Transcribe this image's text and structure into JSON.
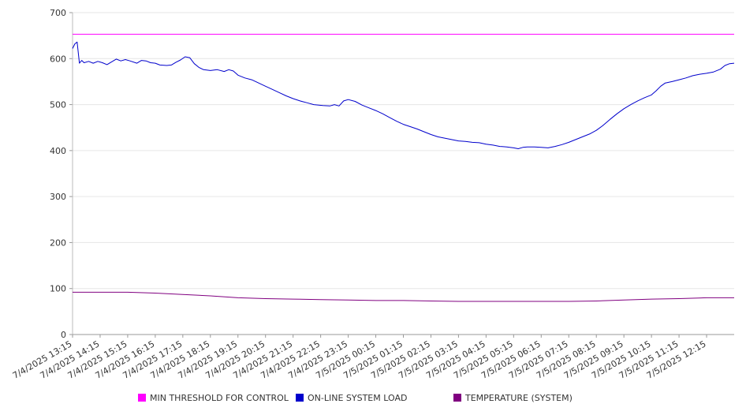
{
  "chart_data": {
    "type": "line",
    "title": "",
    "xlabel": "",
    "ylabel": "",
    "ylim": [
      0,
      700
    ],
    "yticks": [
      0,
      100,
      200,
      300,
      400,
      500,
      600,
      700
    ],
    "x_tick_labels": [
      "7/4/2025 13:15",
      "7/4/2025 14:15",
      "7/4/2025 15:15",
      "7/4/2025 16:15",
      "7/4/2025 17:15",
      "7/4/2025 18:15",
      "7/4/2025 19:15",
      "7/4/2025 20:15",
      "7/4/2025 21:15",
      "7/4/2025 22:15",
      "7/4/2025 23:15",
      "7/5/2025 00:15",
      "7/5/2025 01:15",
      "7/5/2025 02:15",
      "7/5/2025 03:15",
      "7/5/2025 04:15",
      "7/5/2025 05:15",
      "7/5/2025 06:15",
      "7/5/2025 07:15",
      "7/5/2025 08:15",
      "7/5/2025 09:15",
      "7/5/2025 10:15",
      "7/5/2025 11:15",
      "7/5/2025 12:15"
    ],
    "grid": true,
    "legend_position": "bottom",
    "series": [
      {
        "name": "MIN THRESHOLD FOR CONTROL",
        "color": "#ff00ff",
        "points": [
          [
            "7/4/2025 13:15",
            653
          ],
          [
            "7/5/2025 13:15",
            653
          ]
        ]
      },
      {
        "name": "ON-LINE SYSTEM LOAD",
        "color": "#0000cc",
        "points": [
          [
            "7/4/2025 13:15",
            622
          ],
          [
            "7/4/2025 13:20",
            632
          ],
          [
            "7/4/2025 13:25",
            636
          ],
          [
            "7/4/2025 13:30",
            590
          ],
          [
            "7/4/2025 13:35",
            596
          ],
          [
            "7/4/2025 13:40",
            591
          ],
          [
            "7/4/2025 13:50",
            594
          ],
          [
            "7/4/2025 14:00",
            590
          ],
          [
            "7/4/2025 14:10",
            594
          ],
          [
            "7/4/2025 14:20",
            591
          ],
          [
            "7/4/2025 14:30",
            587
          ],
          [
            "7/4/2025 14:40",
            593
          ],
          [
            "7/4/2025 14:50",
            599
          ],
          [
            "7/4/2025 15:00",
            595
          ],
          [
            "7/4/2025 15:10",
            598
          ],
          [
            "7/4/2025 15:20",
            595
          ],
          [
            "7/4/2025 15:35",
            590
          ],
          [
            "7/4/2025 15:45",
            596
          ],
          [
            "7/4/2025 15:55",
            595
          ],
          [
            "7/4/2025 16:05",
            591
          ],
          [
            "7/4/2025 16:15",
            590
          ],
          [
            "7/4/2025 16:25",
            586
          ],
          [
            "7/4/2025 16:40",
            585
          ],
          [
            "7/4/2025 16:50",
            586
          ],
          [
            "7/4/2025 17:00",
            592
          ],
          [
            "7/4/2025 17:10",
            597
          ],
          [
            "7/4/2025 17:20",
            604
          ],
          [
            "7/4/2025 17:30",
            602
          ],
          [
            "7/4/2025 17:40",
            589
          ],
          [
            "7/4/2025 17:50",
            581
          ],
          [
            "7/4/2025 18:00",
            576
          ],
          [
            "7/4/2025 18:15",
            574
          ],
          [
            "7/4/2025 18:30",
            576
          ],
          [
            "7/4/2025 18:45",
            572
          ],
          [
            "7/4/2025 18:55",
            576
          ],
          [
            "7/4/2025 19:05",
            573
          ],
          [
            "7/4/2025 19:15",
            564
          ],
          [
            "7/4/2025 19:30",
            558
          ],
          [
            "7/4/2025 19:45",
            554
          ],
          [
            "7/4/2025 20:00",
            547
          ],
          [
            "7/4/2025 20:15",
            540
          ],
          [
            "7/4/2025 20:30",
            533
          ],
          [
            "7/4/2025 20:45",
            526
          ],
          [
            "7/4/2025 21:00",
            519
          ],
          [
            "7/4/2025 21:15",
            513
          ],
          [
            "7/4/2025 21:30",
            508
          ],
          [
            "7/4/2025 21:45",
            504
          ],
          [
            "7/4/2025 22:00",
            500
          ],
          [
            "7/4/2025 22:20",
            498
          ],
          [
            "7/4/2025 22:35",
            497
          ],
          [
            "7/4/2025 22:45",
            500
          ],
          [
            "7/4/2025 22:55",
            497
          ],
          [
            "7/4/2025 23:05",
            508
          ],
          [
            "7/4/2025 23:15",
            511
          ],
          [
            "7/4/2025 23:30",
            507
          ],
          [
            "7/4/2025 23:45",
            499
          ],
          [
            "7/5/2025 00:00",
            493
          ],
          [
            "7/5/2025 00:15",
            487
          ],
          [
            "7/5/2025 00:30",
            480
          ],
          [
            "7/5/2025 00:45",
            472
          ],
          [
            "7/5/2025 01:00",
            464
          ],
          [
            "7/5/2025 01:15",
            457
          ],
          [
            "7/5/2025 01:30",
            452
          ],
          [
            "7/5/2025 01:45",
            447
          ],
          [
            "7/5/2025 02:00",
            441
          ],
          [
            "7/5/2025 02:15",
            435
          ],
          [
            "7/5/2025 02:30",
            430
          ],
          [
            "7/5/2025 02:45",
            427
          ],
          [
            "7/5/2025 03:00",
            424
          ],
          [
            "7/5/2025 03:15",
            421
          ],
          [
            "7/5/2025 03:30",
            420
          ],
          [
            "7/5/2025 03:45",
            418
          ],
          [
            "7/5/2025 04:00",
            417
          ],
          [
            "7/5/2025 04:15",
            414
          ],
          [
            "7/5/2025 04:30",
            412
          ],
          [
            "7/5/2025 04:45",
            409
          ],
          [
            "7/5/2025 05:00",
            408
          ],
          [
            "7/5/2025 05:15",
            406
          ],
          [
            "7/5/2025 05:25",
            404
          ],
          [
            "7/5/2025 05:35",
            407
          ],
          [
            "7/5/2025 05:45",
            408
          ],
          [
            "7/5/2025 06:00",
            408
          ],
          [
            "7/5/2025 06:15",
            407
          ],
          [
            "7/5/2025 06:30",
            406
          ],
          [
            "7/5/2025 06:45",
            409
          ],
          [
            "7/5/2025 07:00",
            413
          ],
          [
            "7/5/2025 07:15",
            418
          ],
          [
            "7/5/2025 07:30",
            424
          ],
          [
            "7/5/2025 07:45",
            430
          ],
          [
            "7/5/2025 08:00",
            436
          ],
          [
            "7/5/2025 08:15",
            444
          ],
          [
            "7/5/2025 08:30",
            455
          ],
          [
            "7/5/2025 08:45",
            468
          ],
          [
            "7/5/2025 09:00",
            480
          ],
          [
            "7/5/2025 09:15",
            491
          ],
          [
            "7/5/2025 09:30",
            500
          ],
          [
            "7/5/2025 09:45",
            508
          ],
          [
            "7/5/2025 10:00",
            515
          ],
          [
            "7/5/2025 10:15",
            521
          ],
          [
            "7/5/2025 10:25",
            530
          ],
          [
            "7/5/2025 10:35",
            540
          ],
          [
            "7/5/2025 10:45",
            547
          ],
          [
            "7/5/2025 11:00",
            550
          ],
          [
            "7/5/2025 11:15",
            554
          ],
          [
            "7/5/2025 11:30",
            558
          ],
          [
            "7/5/2025 11:45",
            563
          ],
          [
            "7/5/2025 12:00",
            566
          ],
          [
            "7/5/2025 12:15",
            568
          ],
          [
            "7/5/2025 12:30",
            571
          ],
          [
            "7/5/2025 12:45",
            577
          ],
          [
            "7/5/2025 12:55",
            585
          ],
          [
            "7/5/2025 13:05",
            589
          ],
          [
            "7/5/2025 13:15",
            590
          ]
        ]
      },
      {
        "name": "TEMPERATURE (SYSTEM)",
        "color": "#800080",
        "points": [
          [
            "7/4/2025 13:15",
            92
          ],
          [
            "7/4/2025 14:15",
            92
          ],
          [
            "7/4/2025 15:15",
            92
          ],
          [
            "7/4/2025 16:15",
            90
          ],
          [
            "7/4/2025 17:15",
            87
          ],
          [
            "7/4/2025 18:15",
            84
          ],
          [
            "7/4/2025 19:15",
            80
          ],
          [
            "7/4/2025 20:15",
            78
          ],
          [
            "7/4/2025 21:15",
            77
          ],
          [
            "7/4/2025 22:15",
            76
          ],
          [
            "7/4/2025 23:15",
            75
          ],
          [
            "7/5/2025 00:15",
            74
          ],
          [
            "7/5/2025 01:15",
            74
          ],
          [
            "7/5/2025 02:15",
            73
          ],
          [
            "7/5/2025 03:15",
            72
          ],
          [
            "7/5/2025 04:15",
            72
          ],
          [
            "7/5/2025 05:15",
            72
          ],
          [
            "7/5/2025 06:15",
            72
          ],
          [
            "7/5/2025 07:15",
            72
          ],
          [
            "7/5/2025 08:15",
            73
          ],
          [
            "7/5/2025 09:15",
            75
          ],
          [
            "7/5/2025 10:15",
            77
          ],
          [
            "7/5/2025 11:15",
            78
          ],
          [
            "7/5/2025 12:15",
            80
          ],
          [
            "7/5/2025 13:15",
            80
          ]
        ]
      }
    ]
  }
}
